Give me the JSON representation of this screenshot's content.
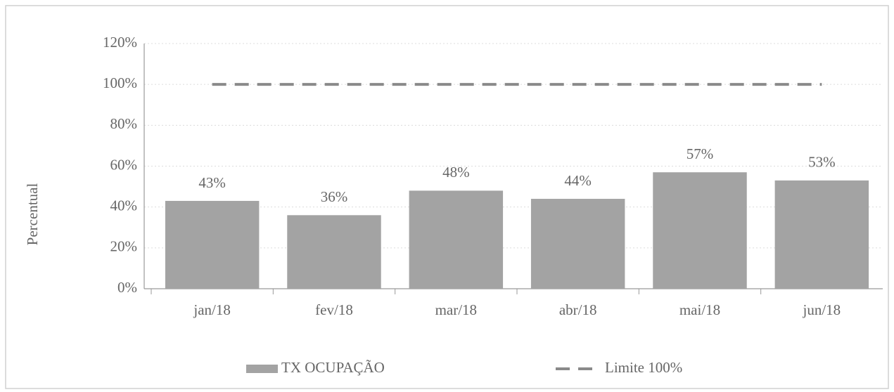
{
  "chart_data": {
    "type": "bar",
    "y_label": "Percentual",
    "categories": [
      "jan/18",
      "fev/18",
      "mar/18",
      "abr/18",
      "mai/18",
      "jun/18"
    ],
    "series": [
      {
        "name": "TX OCUPAÇÃO",
        "type": "bar",
        "color": "#a3a3a3",
        "values": [
          43,
          36,
          48,
          44,
          57,
          53
        ],
        "value_labels": [
          "43%",
          "36%",
          "48%",
          "44%",
          "57%",
          "53%"
        ]
      },
      {
        "name": "Limite 100%",
        "type": "line",
        "color": "#8a8a8a",
        "values": [
          100,
          100,
          100,
          100,
          100,
          100
        ]
      }
    ],
    "ylim": [
      0,
      120
    ],
    "yticks": [
      {
        "value": 0,
        "label": "0%"
      },
      {
        "value": 20,
        "label": "20%"
      },
      {
        "value": 40,
        "label": "40%"
      },
      {
        "value": 60,
        "label": "60%"
      },
      {
        "value": 80,
        "label": "80%"
      },
      {
        "value": 100,
        "label": "100%"
      },
      {
        "value": 120,
        "label": "120%"
      }
    ],
    "grid": true
  }
}
